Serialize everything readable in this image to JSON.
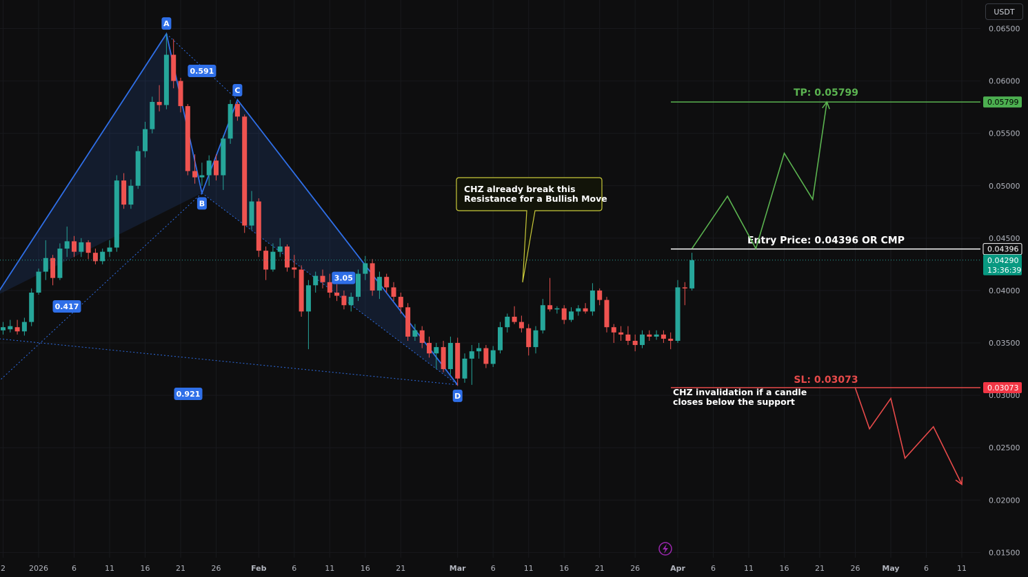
{
  "toolbar": {
    "currency": "USDT"
  },
  "colors": {
    "background": "#0e0e0f",
    "bull": "#26a69a",
    "bear": "#ef5350",
    "pattern": "#2f6fe8",
    "tp": "#5bb450",
    "sl": "#e84a4a",
    "entry": "#ffffff",
    "axis_text": "#b2b5be"
  },
  "chart_data": {
    "type": "candlestick",
    "symbol": "CHZ/USDT",
    "ylim": [
      0.0145,
      0.0672
    ],
    "y_ticks": [
      "0.01500",
      "0.02000",
      "0.02500",
      "0.03000",
      "0.03500",
      "0.04000",
      "0.04500",
      "0.05000",
      "0.05500",
      "0.06000",
      "0.06500"
    ],
    "x_ticks": [
      {
        "date": "2025-12-27",
        "label": "2"
      },
      {
        "date": "2026-01-01",
        "label": "2026"
      },
      {
        "date": "2026-01-06",
        "label": "6"
      },
      {
        "date": "2026-01-11",
        "label": "11"
      },
      {
        "date": "2026-01-16",
        "label": "16"
      },
      {
        "date": "2026-01-21",
        "label": "21"
      },
      {
        "date": "2026-01-26",
        "label": "26"
      },
      {
        "date": "2026-02-01",
        "label": "Feb"
      },
      {
        "date": "2026-02-06",
        "label": "6"
      },
      {
        "date": "2026-02-11",
        "label": "11"
      },
      {
        "date": "2026-02-16",
        "label": "16"
      },
      {
        "date": "2026-02-21",
        "label": "21"
      },
      {
        "date": "2026-03-01",
        "label": "Mar"
      },
      {
        "date": "2026-03-06",
        "label": "6"
      },
      {
        "date": "2026-03-11",
        "label": "11"
      },
      {
        "date": "2026-03-16",
        "label": "16"
      },
      {
        "date": "2026-03-21",
        "label": "21"
      },
      {
        "date": "2026-03-26",
        "label": "26"
      },
      {
        "date": "2026-04-01",
        "label": "Apr"
      },
      {
        "date": "2026-04-06",
        "label": "6"
      },
      {
        "date": "2026-04-11",
        "label": "11"
      },
      {
        "date": "2026-04-16",
        "label": "16"
      },
      {
        "date": "2026-04-21",
        "label": "21"
      },
      {
        "date": "2026-04-26",
        "label": "26"
      },
      {
        "date": "2026-05-01",
        "label": "May"
      },
      {
        "date": "2026-05-06",
        "label": "6"
      },
      {
        "date": "2026-05-11",
        "label": "11"
      }
    ],
    "candles": [
      {
        "d": "2025-12-26",
        "o": 0.0365,
        "h": 0.0371,
        "l": 0.0355,
        "c": 0.0362
      },
      {
        "d": "2025-12-27",
        "o": 0.0362,
        "h": 0.037,
        "l": 0.0358,
        "c": 0.0365
      },
      {
        "d": "2025-12-28",
        "o": 0.0363,
        "h": 0.0372,
        "l": 0.036,
        "c": 0.0366
      },
      {
        "d": "2025-12-29",
        "o": 0.0365,
        "h": 0.0372,
        "l": 0.0358,
        "c": 0.0361
      },
      {
        "d": "2025-12-30",
        "o": 0.0361,
        "h": 0.0374,
        "l": 0.0357,
        "c": 0.037
      },
      {
        "d": "2025-12-31",
        "o": 0.037,
        "h": 0.0402,
        "l": 0.0366,
        "c": 0.0398
      },
      {
        "d": "2026-01-01",
        "o": 0.0398,
        "h": 0.0421,
        "l": 0.0396,
        "c": 0.0418
      },
      {
        "d": "2026-01-02",
        "o": 0.0418,
        "h": 0.0448,
        "l": 0.041,
        "c": 0.0431
      },
      {
        "d": "2026-01-03",
        "o": 0.0431,
        "h": 0.0434,
        "l": 0.0405,
        "c": 0.0412
      },
      {
        "d": "2026-01-04",
        "o": 0.0412,
        "h": 0.0445,
        "l": 0.041,
        "c": 0.044
      },
      {
        "d": "2026-01-05",
        "o": 0.044,
        "h": 0.0461,
        "l": 0.0432,
        "c": 0.0447
      },
      {
        "d": "2026-01-06",
        "o": 0.0447,
        "h": 0.0452,
        "l": 0.0432,
        "c": 0.0437
      },
      {
        "d": "2026-01-07",
        "o": 0.0437,
        "h": 0.045,
        "l": 0.0432,
        "c": 0.0446
      },
      {
        "d": "2026-01-08",
        "o": 0.0446,
        "h": 0.0448,
        "l": 0.043,
        "c": 0.0436
      },
      {
        "d": "2026-01-09",
        "o": 0.0436,
        "h": 0.044,
        "l": 0.0425,
        "c": 0.0428
      },
      {
        "d": "2026-01-10",
        "o": 0.0428,
        "h": 0.044,
        "l": 0.0425,
        "c": 0.0437
      },
      {
        "d": "2026-01-11",
        "o": 0.0437,
        "h": 0.0448,
        "l": 0.0432,
        "c": 0.0441
      },
      {
        "d": "2026-01-12",
        "o": 0.0441,
        "h": 0.051,
        "l": 0.0437,
        "c": 0.0505
      },
      {
        "d": "2026-01-13",
        "o": 0.0505,
        "h": 0.0512,
        "l": 0.0478,
        "c": 0.0482
      },
      {
        "d": "2026-01-14",
        "o": 0.0482,
        "h": 0.0506,
        "l": 0.0478,
        "c": 0.05
      },
      {
        "d": "2026-01-15",
        "o": 0.05,
        "h": 0.0538,
        "l": 0.0497,
        "c": 0.0533
      },
      {
        "d": "2026-01-16",
        "o": 0.0533,
        "h": 0.0561,
        "l": 0.0527,
        "c": 0.0554
      },
      {
        "d": "2026-01-17",
        "o": 0.0554,
        "h": 0.0585,
        "l": 0.055,
        "c": 0.058
      },
      {
        "d": "2026-01-18",
        "o": 0.058,
        "h": 0.0596,
        "l": 0.0571,
        "c": 0.0577
      },
      {
        "d": "2026-01-19",
        "o": 0.0577,
        "h": 0.0645,
        "l": 0.0573,
        "c": 0.0625
      },
      {
        "d": "2026-01-20",
        "o": 0.0625,
        "h": 0.064,
        "l": 0.0593,
        "c": 0.06
      },
      {
        "d": "2026-01-21",
        "o": 0.06,
        "h": 0.0603,
        "l": 0.057,
        "c": 0.0576
      },
      {
        "d": "2026-01-22",
        "o": 0.0576,
        "h": 0.0578,
        "l": 0.051,
        "c": 0.0514
      },
      {
        "d": "2026-01-23",
        "o": 0.0514,
        "h": 0.053,
        "l": 0.0502,
        "c": 0.0508
      },
      {
        "d": "2026-01-24",
        "o": 0.0508,
        "h": 0.0522,
        "l": 0.05,
        "c": 0.051
      },
      {
        "d": "2026-01-25",
        "o": 0.051,
        "h": 0.0529,
        "l": 0.05,
        "c": 0.0524
      },
      {
        "d": "2026-01-26",
        "o": 0.0524,
        "h": 0.053,
        "l": 0.0505,
        "c": 0.051
      },
      {
        "d": "2026-01-27",
        "o": 0.051,
        "h": 0.0548,
        "l": 0.0496,
        "c": 0.0545
      },
      {
        "d": "2026-01-28",
        "o": 0.0545,
        "h": 0.0582,
        "l": 0.054,
        "c": 0.0578
      },
      {
        "d": "2026-01-29",
        "o": 0.0578,
        "h": 0.058,
        "l": 0.0562,
        "c": 0.0566
      },
      {
        "d": "2026-01-30",
        "o": 0.0566,
        "h": 0.0568,
        "l": 0.0455,
        "c": 0.0462
      },
      {
        "d": "2026-01-31",
        "o": 0.0462,
        "h": 0.0495,
        "l": 0.0458,
        "c": 0.0485
      },
      {
        "d": "2026-02-01",
        "o": 0.0485,
        "h": 0.0488,
        "l": 0.0432,
        "c": 0.0438
      },
      {
        "d": "2026-02-02",
        "o": 0.0438,
        "h": 0.0442,
        "l": 0.041,
        "c": 0.042
      },
      {
        "d": "2026-02-03",
        "o": 0.042,
        "h": 0.0445,
        "l": 0.0418,
        "c": 0.0437
      },
      {
        "d": "2026-02-04",
        "o": 0.0437,
        "h": 0.045,
        "l": 0.0432,
        "c": 0.0442
      },
      {
        "d": "2026-02-05",
        "o": 0.0442,
        "h": 0.0444,
        "l": 0.0418,
        "c": 0.0422
      },
      {
        "d": "2026-02-06",
        "o": 0.0422,
        "h": 0.0434,
        "l": 0.0412,
        "c": 0.042
      },
      {
        "d": "2026-02-07",
        "o": 0.042,
        "h": 0.0424,
        "l": 0.0375,
        "c": 0.038
      },
      {
        "d": "2026-02-08",
        "o": 0.038,
        "h": 0.041,
        "l": 0.0344,
        "c": 0.0405
      },
      {
        "d": "2026-02-09",
        "o": 0.0405,
        "h": 0.0418,
        "l": 0.0398,
        "c": 0.0414
      },
      {
        "d": "2026-02-10",
        "o": 0.0414,
        "h": 0.042,
        "l": 0.0402,
        "c": 0.0408
      },
      {
        "d": "2026-02-11",
        "o": 0.0408,
        "h": 0.0416,
        "l": 0.0393,
        "c": 0.0398
      },
      {
        "d": "2026-02-12",
        "o": 0.0398,
        "h": 0.0406,
        "l": 0.039,
        "c": 0.0395
      },
      {
        "d": "2026-02-13",
        "o": 0.0395,
        "h": 0.04,
        "l": 0.0382,
        "c": 0.0386
      },
      {
        "d": "2026-02-14",
        "o": 0.0386,
        "h": 0.0398,
        "l": 0.038,
        "c": 0.0394
      },
      {
        "d": "2026-02-15",
        "o": 0.0394,
        "h": 0.042,
        "l": 0.039,
        "c": 0.0416
      },
      {
        "d": "2026-02-16",
        "o": 0.0416,
        "h": 0.0433,
        "l": 0.041,
        "c": 0.0426
      },
      {
        "d": "2026-02-17",
        "o": 0.0426,
        "h": 0.043,
        "l": 0.0395,
        "c": 0.04
      },
      {
        "d": "2026-02-18",
        "o": 0.04,
        "h": 0.0418,
        "l": 0.0392,
        "c": 0.0413
      },
      {
        "d": "2026-02-19",
        "o": 0.0413,
        "h": 0.0416,
        "l": 0.0398,
        "c": 0.0403
      },
      {
        "d": "2026-02-20",
        "o": 0.0403,
        "h": 0.0408,
        "l": 0.039,
        "c": 0.0394
      },
      {
        "d": "2026-02-21",
        "o": 0.0394,
        "h": 0.0398,
        "l": 0.0378,
        "c": 0.0384
      },
      {
        "d": "2026-02-22",
        "o": 0.0384,
        "h": 0.0388,
        "l": 0.0352,
        "c": 0.0356
      },
      {
        "d": "2026-02-23",
        "o": 0.0356,
        "h": 0.0368,
        "l": 0.0352,
        "c": 0.0362
      },
      {
        "d": "2026-02-24",
        "o": 0.0362,
        "h": 0.0366,
        "l": 0.0345,
        "c": 0.035
      },
      {
        "d": "2026-02-25",
        "o": 0.035,
        "h": 0.0356,
        "l": 0.0336,
        "c": 0.034
      },
      {
        "d": "2026-02-26",
        "o": 0.034,
        "h": 0.035,
        "l": 0.0325,
        "c": 0.0346
      },
      {
        "d": "2026-02-27",
        "o": 0.0346,
        "h": 0.0352,
        "l": 0.0322,
        "c": 0.0325
      },
      {
        "d": "2026-02-28",
        "o": 0.0325,
        "h": 0.0356,
        "l": 0.032,
        "c": 0.035
      },
      {
        "d": "2026-03-01",
        "o": 0.035,
        "h": 0.0355,
        "l": 0.0309,
        "c": 0.0316
      },
      {
        "d": "2026-03-02",
        "o": 0.0316,
        "h": 0.034,
        "l": 0.0312,
        "c": 0.0335
      },
      {
        "d": "2026-03-03",
        "o": 0.0335,
        "h": 0.0348,
        "l": 0.031,
        "c": 0.0342
      },
      {
        "d": "2026-03-04",
        "o": 0.0342,
        "h": 0.035,
        "l": 0.0335,
        "c": 0.0345
      },
      {
        "d": "2026-03-05",
        "o": 0.0345,
        "h": 0.0348,
        "l": 0.0326,
        "c": 0.033
      },
      {
        "d": "2026-03-06",
        "o": 0.033,
        "h": 0.0347,
        "l": 0.0327,
        "c": 0.0343
      },
      {
        "d": "2026-03-07",
        "o": 0.0343,
        "h": 0.037,
        "l": 0.034,
        "c": 0.0365
      },
      {
        "d": "2026-03-08",
        "o": 0.0365,
        "h": 0.0378,
        "l": 0.036,
        "c": 0.0375
      },
      {
        "d": "2026-03-09",
        "o": 0.0375,
        "h": 0.0385,
        "l": 0.0368,
        "c": 0.037
      },
      {
        "d": "2026-03-10",
        "o": 0.037,
        "h": 0.0376,
        "l": 0.036,
        "c": 0.0364
      },
      {
        "d": "2026-03-11",
        "o": 0.0364,
        "h": 0.0368,
        "l": 0.0338,
        "c": 0.0346
      },
      {
        "d": "2026-03-12",
        "o": 0.0346,
        "h": 0.0366,
        "l": 0.034,
        "c": 0.0362
      },
      {
        "d": "2026-03-13",
        "o": 0.0362,
        "h": 0.0392,
        "l": 0.0359,
        "c": 0.0386
      },
      {
        "d": "2026-03-14",
        "o": 0.0386,
        "h": 0.0412,
        "l": 0.038,
        "c": 0.0382
      },
      {
        "d": "2026-03-15",
        "o": 0.0382,
        "h": 0.0385,
        "l": 0.0378,
        "c": 0.0383
      },
      {
        "d": "2026-03-16",
        "o": 0.0383,
        "h": 0.0386,
        "l": 0.0368,
        "c": 0.0372
      },
      {
        "d": "2026-03-17",
        "o": 0.0372,
        "h": 0.0384,
        "l": 0.037,
        "c": 0.038
      },
      {
        "d": "2026-03-18",
        "o": 0.038,
        "h": 0.0386,
        "l": 0.0376,
        "c": 0.0383
      },
      {
        "d": "2026-03-19",
        "o": 0.0383,
        "h": 0.0388,
        "l": 0.0378,
        "c": 0.038
      },
      {
        "d": "2026-03-20",
        "o": 0.038,
        "h": 0.0407,
        "l": 0.0376,
        "c": 0.04
      },
      {
        "d": "2026-03-21",
        "o": 0.04,
        "h": 0.0402,
        "l": 0.0386,
        "c": 0.0391
      },
      {
        "d": "2026-03-22",
        "o": 0.0391,
        "h": 0.0394,
        "l": 0.036,
        "c": 0.0365
      },
      {
        "d": "2026-03-23",
        "o": 0.0365,
        "h": 0.0368,
        "l": 0.035,
        "c": 0.036
      },
      {
        "d": "2026-03-24",
        "o": 0.036,
        "h": 0.0366,
        "l": 0.0352,
        "c": 0.0358
      },
      {
        "d": "2026-03-25",
        "o": 0.0358,
        "h": 0.0366,
        "l": 0.0348,
        "c": 0.0352
      },
      {
        "d": "2026-03-26",
        "o": 0.0352,
        "h": 0.0358,
        "l": 0.0342,
        "c": 0.0348
      },
      {
        "d": "2026-03-27",
        "o": 0.0348,
        "h": 0.0362,
        "l": 0.0345,
        "c": 0.0358
      },
      {
        "d": "2026-03-28",
        "o": 0.0358,
        "h": 0.0362,
        "l": 0.0352,
        "c": 0.0356
      },
      {
        "d": "2026-03-29",
        "o": 0.0356,
        "h": 0.0362,
        "l": 0.0353,
        "c": 0.0358
      },
      {
        "d": "2026-03-30",
        "o": 0.0358,
        "h": 0.0362,
        "l": 0.035,
        "c": 0.0354
      },
      {
        "d": "2026-03-31",
        "o": 0.0354,
        "h": 0.036,
        "l": 0.0344,
        "c": 0.0352
      },
      {
        "d": "2026-04-01",
        "o": 0.0352,
        "h": 0.041,
        "l": 0.035,
        "c": 0.0403
      },
      {
        "d": "2026-04-02",
        "o": 0.0403,
        "h": 0.0408,
        "l": 0.0386,
        "c": 0.0402
      },
      {
        "d": "2026-04-03",
        "o": 0.0402,
        "h": 0.0436,
        "l": 0.04,
        "c": 0.0429
      }
    ],
    "harmonic_pattern": {
      "points": [
        {
          "label": "A",
          "d": "2026-01-19",
          "y": 0.0645
        },
        {
          "label": "B",
          "d": "2026-01-24",
          "y": 0.0493
        },
        {
          "label": "C",
          "d": "2026-01-29",
          "y": 0.0582
        },
        {
          "label": "D",
          "d": "2026-03-01",
          "y": 0.031
        }
      ],
      "x_start": {
        "d": "2025-12-26",
        "y": 0.0395
      },
      "ratios": [
        "0.591",
        "0.417",
        "3.05",
        "0.921"
      ]
    },
    "levels": {
      "tp": {
        "value": 0.05799,
        "text": "TP: 0.05799",
        "label": "0.05799"
      },
      "entry": {
        "value": 0.04396,
        "text": "Entry Price: 0.04396 OR CMP",
        "label": "0.04396"
      },
      "sl": {
        "value": 0.03073,
        "text": "SL: 0.03073",
        "label": "0.03073"
      }
    },
    "current_price": {
      "value": 0.0429,
      "label": "0.04290",
      "countdown": "13:36:39"
    },
    "bull_projection": [
      {
        "d": "2026-04-03",
        "y": 0.044
      },
      {
        "d": "2026-04-08",
        "y": 0.049
      },
      {
        "d": "2026-04-12",
        "y": 0.044
      },
      {
        "d": "2026-04-16",
        "y": 0.0531
      },
      {
        "d": "2026-04-20",
        "y": 0.0487
      },
      {
        "d": "2026-04-22",
        "y": 0.058
      }
    ],
    "bear_projection": [
      {
        "d": "2026-04-26",
        "y": 0.0307
      },
      {
        "d": "2026-04-28",
        "y": 0.0268
      },
      {
        "d": "2026-05-01",
        "y": 0.0297
      },
      {
        "d": "2026-05-03",
        "y": 0.024
      },
      {
        "d": "2026-05-07",
        "y": 0.027
      },
      {
        "d": "2026-05-11",
        "y": 0.0215
      }
    ],
    "annotations": {
      "callout": [
        "CHZ already break this",
        "Resistance for a Bullish Move"
      ],
      "invalidation": [
        "CHZ invalidation if a candle",
        "closes below the support"
      ]
    }
  }
}
